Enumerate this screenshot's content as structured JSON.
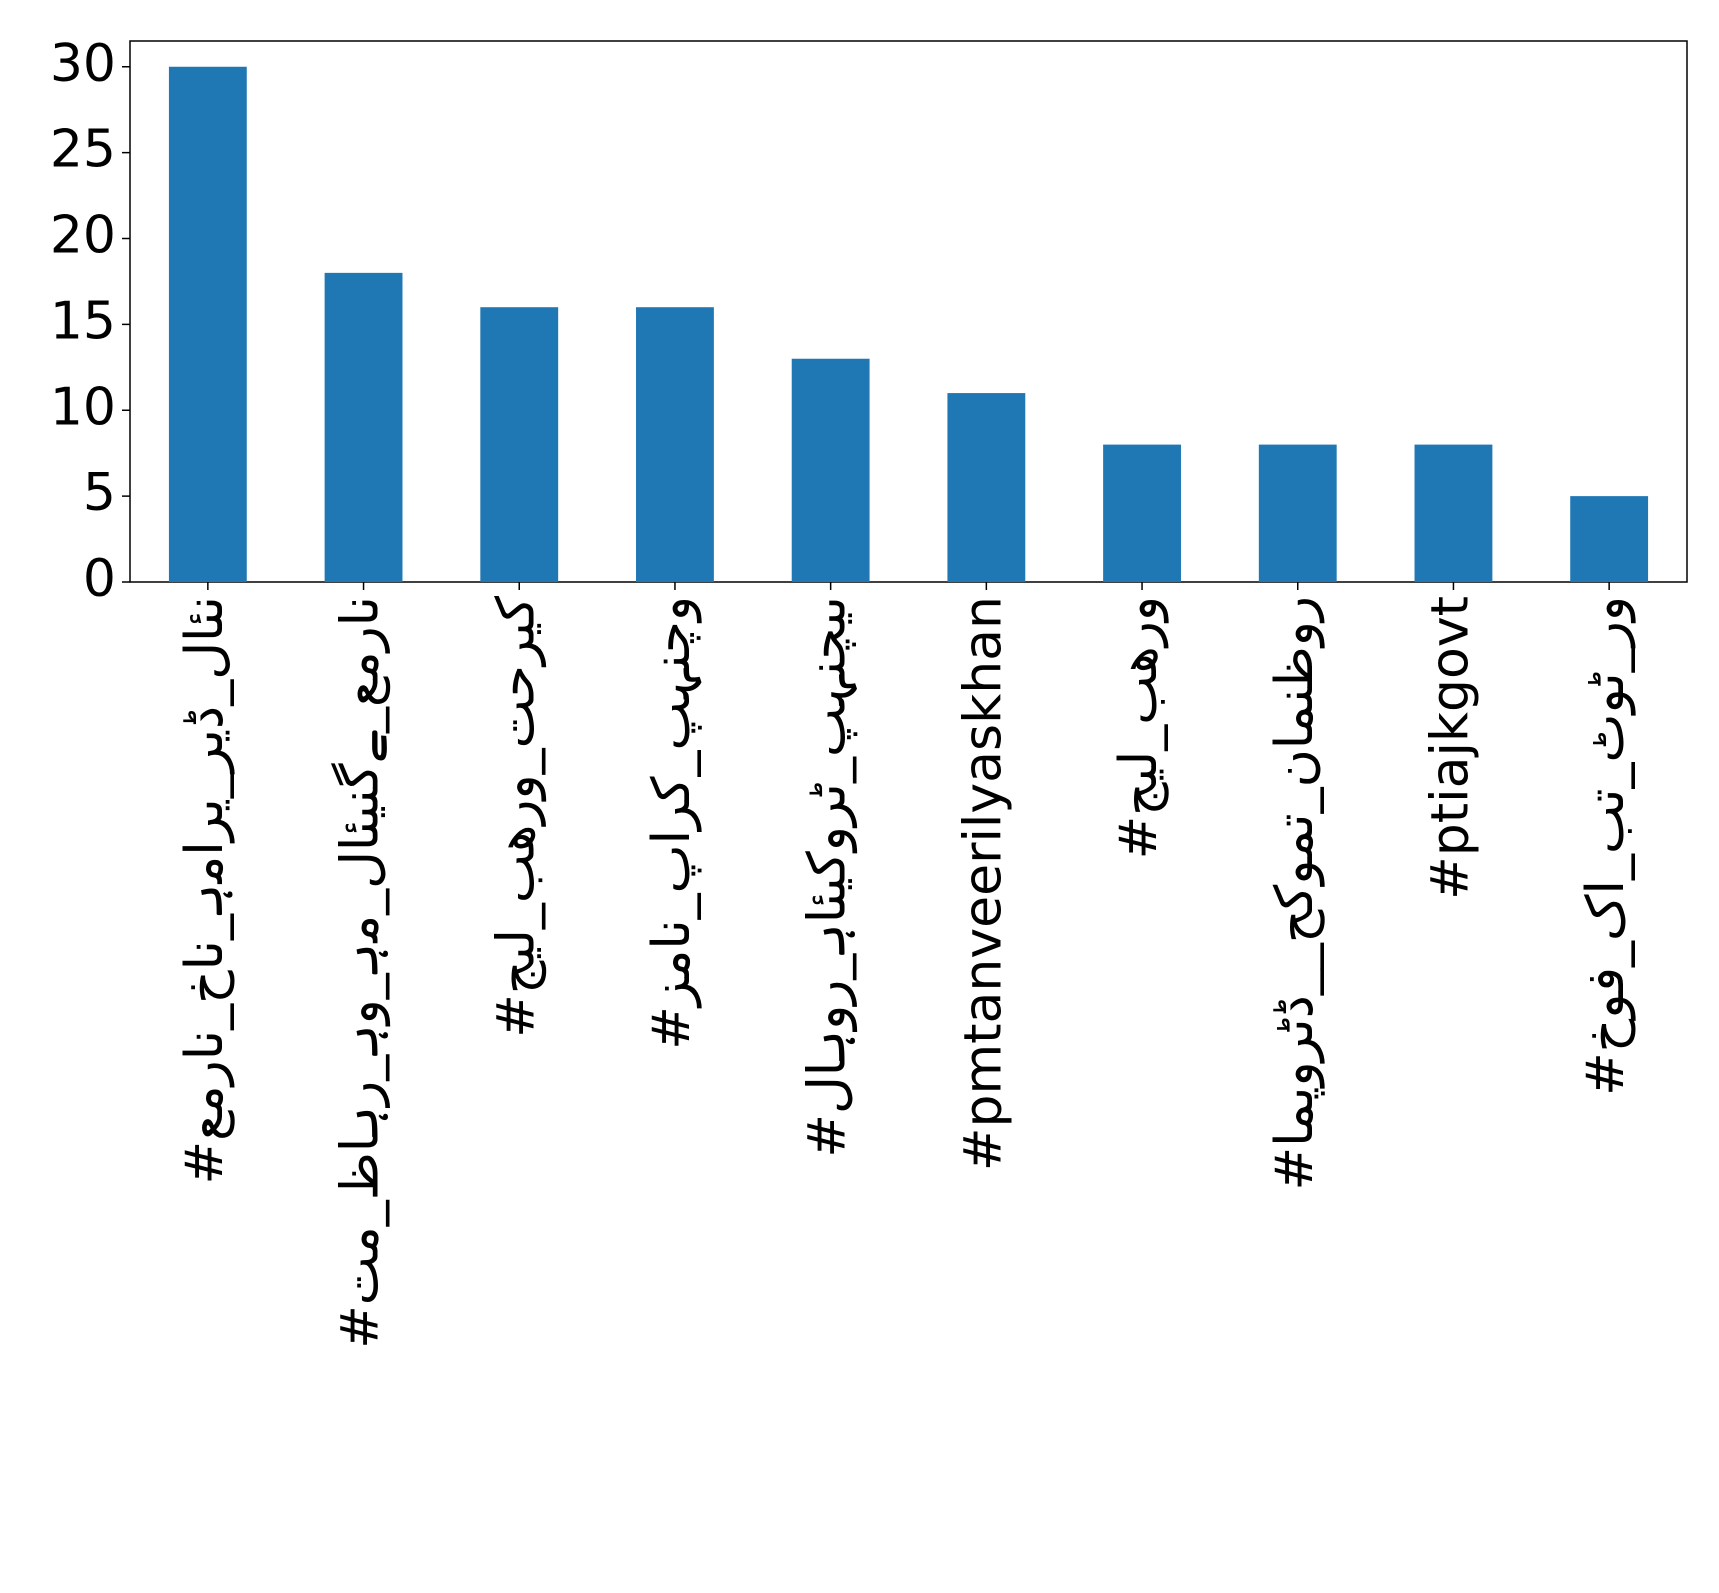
{
  "chart_data": {
    "type": "bar",
    "categories": [
      "#عمران_خان_ہماری_ریڈ_لائن",
      "#تم_ظاہر_ہو_ہم_لائینگے_عمران",
      "#جیل_بھرو_تحریک",
      "#زمان_پارک_پہنچو",
      "#لاہور_ہائیکورٹ_پہنچیں",
      "#pmtanveerilyaskhan",
      "#جیل_بھرو",
      "#امپورٹڈ__حکومت_نامنظور",
      "#ptiajkgovt",
      "#خوف_کا_بت_ٹوٹ_رو"
    ],
    "values": [
      30,
      18,
      16,
      16,
      13,
      11,
      8,
      8,
      8,
      5
    ],
    "color": "#1f77b4",
    "ylim": [
      0,
      31.5
    ],
    "yticks": [
      0,
      5,
      10,
      15,
      20,
      25,
      30
    ],
    "grid": false
  }
}
